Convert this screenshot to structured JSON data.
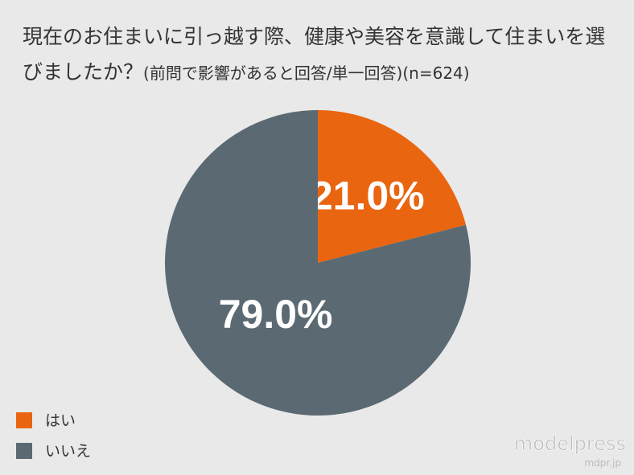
{
  "chart_data": {
    "type": "pie",
    "title": "現在のお住まいに引っ越す際、健康や美容を意識して住まいを選びましたか？",
    "subtitle": "(前問で影響があると回答/単一回答)(n=624)",
    "categories": [
      "はい",
      "いいえ"
    ],
    "values": [
      21.0,
      79.0
    ],
    "value_labels": [
      "21.0%",
      "79.0%"
    ],
    "colors": [
      "#e9650f",
      "#5b6a72"
    ],
    "legend": "bottom-left"
  },
  "watermark": {
    "brand": "modelpress",
    "url": "mdpr.jp"
  }
}
